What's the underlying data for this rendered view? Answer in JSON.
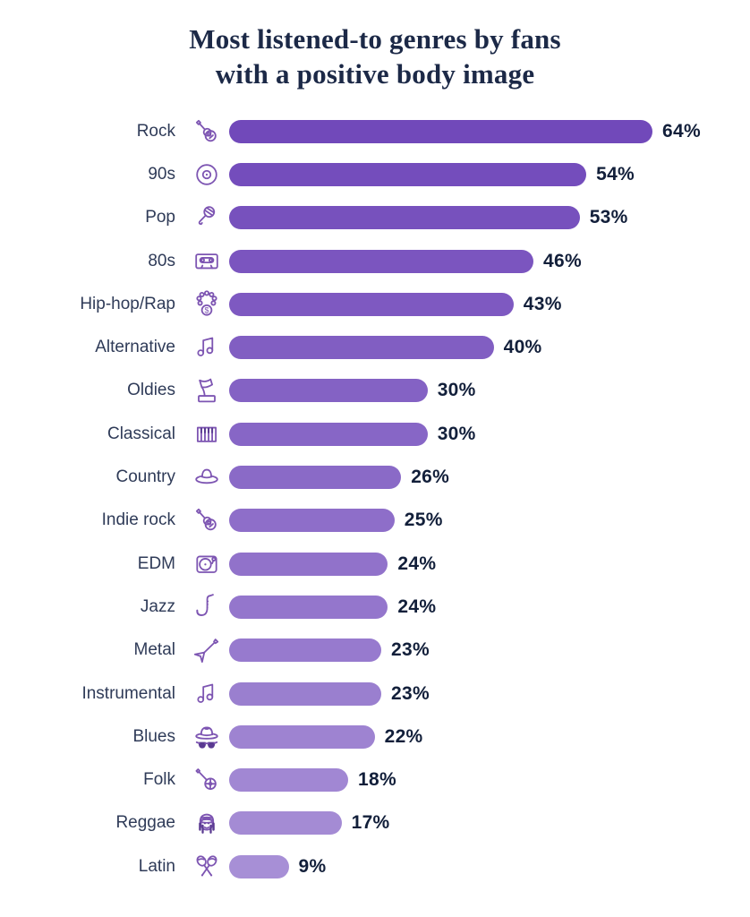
{
  "title": {
    "line1": "Most listened-to genres by fans",
    "line2": "with a positive body image"
  },
  "colors": {
    "background": "#FFFFFF",
    "title_text": "#1C2947",
    "label_text": "#2F3B58",
    "value_text": "#121F3A",
    "icon_stroke": "#7D55B2",
    "icon_fill_dark": "#5A3A91",
    "bar_gradient_start": "#7149BA",
    "bar_gradient_end": "#A78FD6"
  },
  "chart_data": {
    "type": "bar",
    "orientation": "horizontal",
    "title": "Most listened-to genres by fans with a positive body image",
    "categories": [
      "Rock",
      "90s",
      "Pop",
      "80s",
      "Hip-hop/Rap",
      "Alternative",
      "Oldies",
      "Classical",
      "Country",
      "Indie rock",
      "EDM",
      "Jazz",
      "Metal",
      "Instrumental",
      "Blues",
      "Folk",
      "Reggae",
      "Latin"
    ],
    "values": [
      64,
      54,
      53,
      46,
      43,
      40,
      30,
      30,
      26,
      25,
      24,
      24,
      23,
      23,
      22,
      18,
      17,
      9
    ],
    "value_suffix": "%",
    "xlabel": "",
    "ylabel": "",
    "xlim": [
      0,
      64
    ],
    "grid": false,
    "legend": false,
    "data_labels": "outside-end"
  },
  "rows": [
    {
      "label": "Rock",
      "icon": "acoustic-guitar-icon",
      "value": 64,
      "display": "64%",
      "bar_color": "#7149BA"
    },
    {
      "label": "90s",
      "icon": "cd-icon",
      "value": 54,
      "display": "54%",
      "bar_color": "#744DBC"
    },
    {
      "label": "Pop",
      "icon": "microphone-icon",
      "value": 53,
      "display": "53%",
      "bar_color": "#7751BD"
    },
    {
      "label": "80s",
      "icon": "cassette-icon",
      "value": 46,
      "display": "46%",
      "bar_color": "#7B55BF"
    },
    {
      "label": "Hip-hop/Rap",
      "icon": "chain-dollar-icon",
      "value": 43,
      "display": "43%",
      "bar_color": "#7E59C1"
    },
    {
      "label": "Alternative",
      "icon": "music-notes-icon",
      "value": 40,
      "display": "40%",
      "bar_color": "#815EC2"
    },
    {
      "label": "Oldies",
      "icon": "gramophone-icon",
      "value": 30,
      "display": "30%",
      "bar_color": "#8462C4"
    },
    {
      "label": "Classical",
      "icon": "piano-icon",
      "value": 30,
      "display": "30%",
      "bar_color": "#8766C6"
    },
    {
      "label": "Country",
      "icon": "cowboy-hat-icon",
      "value": 26,
      "display": "26%",
      "bar_color": "#8A6AC7"
    },
    {
      "label": "Indie rock",
      "icon": "acoustic-guitar-icon",
      "value": 25,
      "display": "25%",
      "bar_color": "#8E6EC9"
    },
    {
      "label": "EDM",
      "icon": "turntable-icon",
      "value": 24,
      "display": "24%",
      "bar_color": "#9172CA"
    },
    {
      "label": "Jazz",
      "icon": "saxophone-icon",
      "value": 24,
      "display": "24%",
      "bar_color": "#9476CC"
    },
    {
      "label": "Metal",
      "icon": "electric-guitar-icon",
      "value": 23,
      "display": "23%",
      "bar_color": "#977ACE"
    },
    {
      "label": "Instrumental",
      "icon": "music-notes-icon",
      "value": 23,
      "display": "23%",
      "bar_color": "#9A7FCF"
    },
    {
      "label": "Blues",
      "icon": "fedora-sunglasses-icon",
      "value": 22,
      "display": "22%",
      "bar_color": "#9E83D1"
    },
    {
      "label": "Folk",
      "icon": "banjo-icon",
      "value": 18,
      "display": "18%",
      "bar_color": "#A187D3"
    },
    {
      "label": "Reggae",
      "icon": "rasta-icon",
      "value": 17,
      "display": "17%",
      "bar_color": "#A48BD4"
    },
    {
      "label": "Latin",
      "icon": "maracas-icon",
      "value": 9,
      "display": "9%",
      "bar_color": "#A78FD6"
    }
  ]
}
